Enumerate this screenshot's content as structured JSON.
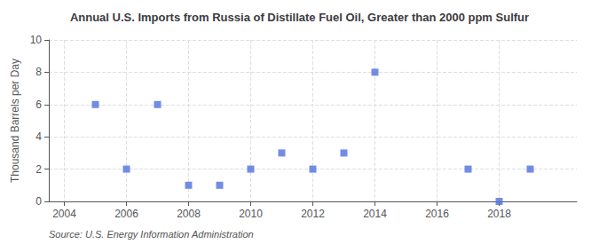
{
  "chart_data": {
    "type": "scatter",
    "title": "Annual U.S. Imports from Russia of Distillate Fuel Oil, Greater than 2000 ppm Sulfur",
    "y_label": "Thousand Barrels per Day",
    "source": "Source: U.S. Energy Information Administration",
    "x": [
      2005,
      2006,
      2007,
      2008,
      2009,
      2010,
      2011,
      2012,
      2013,
      2014,
      2017,
      2018,
      2019
    ],
    "values": [
      6,
      2,
      6,
      1,
      1,
      2,
      3,
      2,
      3,
      8,
      2,
      0,
      2
    ],
    "xlim": [
      2003.5,
      2020.5
    ],
    "ylim": [
      0,
      10
    ],
    "xticks": [
      2004,
      2006,
      2008,
      2010,
      2012,
      2014,
      2016,
      2018
    ],
    "yticks": [
      0,
      2,
      4,
      6,
      8,
      10
    ],
    "marker": "square",
    "grid": true
  }
}
